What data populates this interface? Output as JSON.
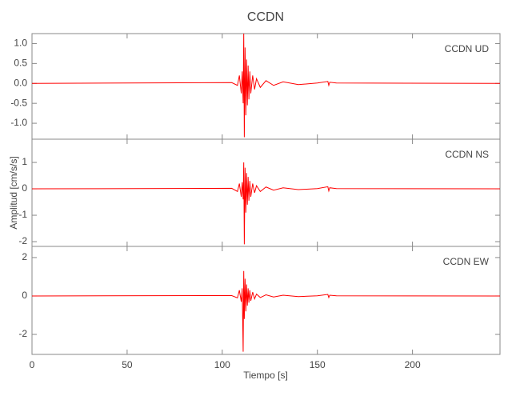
{
  "chart_data": [
    {
      "type": "line",
      "title": "CCDN",
      "annotation": "CCDN   UD",
      "x": [
        0,
        105,
        108,
        109,
        110,
        110.5,
        111,
        111.3,
        111.6,
        112,
        112.4,
        112.8,
        113.2,
        113.6,
        114,
        114.5,
        115,
        116,
        117,
        118,
        120,
        123,
        127,
        132,
        140,
        150,
        155.5,
        156,
        156.5,
        160,
        246
      ],
      "series": [
        {
          "color": "#ff0000",
          "values": [
            0,
            0.02,
            -0.05,
            0.2,
            -0.25,
            0.3,
            -0.5,
            1.25,
            -1.35,
            0.9,
            -0.8,
            0.6,
            -0.55,
            0.45,
            -0.4,
            0.3,
            -0.25,
            0.2,
            -0.15,
            0.12,
            -0.1,
            0.07,
            -0.05,
            0.04,
            -0.03,
            0.01,
            0.05,
            -0.05,
            0.03,
            0.01,
            0
          ]
        }
      ],
      "xlim": [
        0,
        246
      ],
      "ylim": [
        -1.4,
        1.25
      ],
      "yticks": [
        {
          "value": -1,
          "label": "-1.0"
        },
        {
          "value": -0.5,
          "label": "-0.5"
        },
        {
          "value": 0,
          "label": "0.0"
        },
        {
          "value": 0.5,
          "label": "0.5"
        },
        {
          "value": 1,
          "label": "1.0"
        }
      ]
    },
    {
      "type": "line",
      "annotation": "CCDN   NS",
      "ylabel": "Amplitud [cm/s/s]",
      "x": [
        0,
        105,
        108,
        109,
        110,
        110.5,
        111,
        111.3,
        111.6,
        112,
        112.4,
        112.8,
        113.2,
        113.6,
        114,
        114.5,
        115,
        116,
        117,
        118,
        120,
        123,
        127,
        132,
        140,
        150,
        155.5,
        156,
        156.5,
        160,
        246
      ],
      "series": [
        {
          "color": "#ff0000",
          "values": [
            0,
            0.02,
            -0.1,
            0.2,
            -0.3,
            0.25,
            -0.4,
            1.0,
            -2.1,
            0.8,
            -0.9,
            0.6,
            -0.6,
            0.45,
            -0.45,
            0.3,
            -0.3,
            0.2,
            -0.15,
            0.12,
            -0.1,
            0.07,
            -0.05,
            0.04,
            -0.03,
            0.01,
            0.08,
            -0.08,
            0.04,
            0.01,
            0
          ]
        }
      ],
      "xlim": [
        0,
        246
      ],
      "ylim": [
        -2.18,
        1.88
      ],
      "yticks": [
        -2,
        -1,
        0,
        1
      ]
    },
    {
      "type": "line",
      "annotation": "CCDN   EW",
      "xlabel": "Tiempo [s]",
      "x": [
        0,
        105,
        108,
        109,
        110,
        110.5,
        111,
        111.3,
        111.6,
        112,
        112.4,
        112.8,
        113.2,
        113.6,
        114,
        114.5,
        115,
        116,
        117,
        118,
        120,
        123,
        127,
        132,
        140,
        150,
        155.5,
        156,
        156.5,
        160,
        246
      ],
      "series": [
        {
          "color": "#ff0000",
          "values": [
            0,
            0.02,
            -0.1,
            0.3,
            -0.3,
            0.4,
            -2.9,
            1.3,
            -1.2,
            0.9,
            -0.8,
            0.6,
            -0.5,
            0.4,
            -0.35,
            0.3,
            -0.25,
            0.2,
            -0.15,
            0.1,
            -0.08,
            0.06,
            -0.05,
            0.04,
            -0.03,
            0.01,
            0.08,
            -0.08,
            0.04,
            0.01,
            0
          ]
        }
      ],
      "xlim": [
        0,
        246
      ],
      "ylim": [
        -3.04,
        2.58
      ],
      "yticks": [
        -2,
        0,
        2
      ],
      "xticks": [
        0,
        50,
        100,
        150,
        200
      ]
    }
  ]
}
